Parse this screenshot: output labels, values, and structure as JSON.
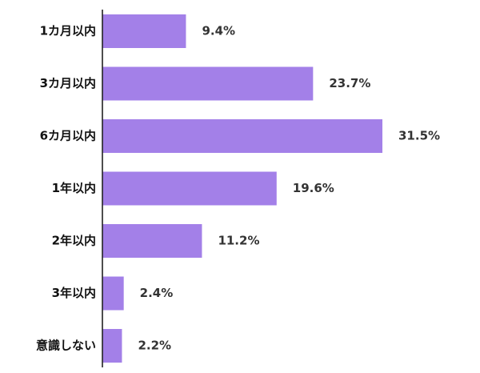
{
  "chart_data": {
    "type": "bar",
    "orientation": "horizontal",
    "title": "",
    "xlabel": "",
    "ylabel": "",
    "categories": [
      "1カ月以内",
      "3カ月以内",
      "6カ月以内",
      "1年以内",
      "2年以内",
      "3年以内",
      "意識しない"
    ],
    "values": [
      9.4,
      23.7,
      31.5,
      19.6,
      11.2,
      2.4,
      2.2
    ],
    "value_labels": [
      "9.4%",
      "23.7%",
      "31.5%",
      "19.6%",
      "11.2%",
      "2.4%",
      "2.2%"
    ],
    "xlim": [
      0,
      31.5
    ],
    "grid": false,
    "legend": "none",
    "bar_color": "#a380e8"
  }
}
